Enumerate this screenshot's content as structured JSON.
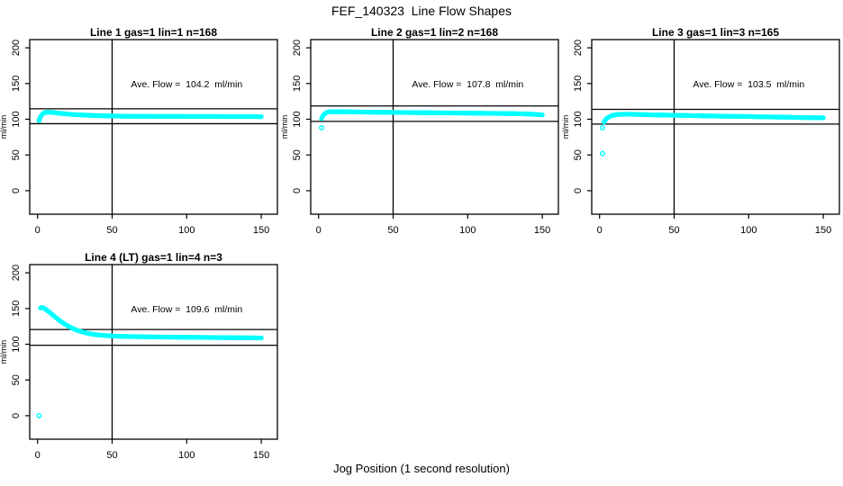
{
  "page": {
    "title": "FEF_140323  Line Flow Shapes",
    "xlabel": "Jog Position (1 second resolution)",
    "background": "#ffffff",
    "point_color": "#00ffff",
    "axis_color": "#000000"
  },
  "chart_data": [
    {
      "type": "scatter",
      "title": "Line 1 gas=1 lin=1 n=168",
      "annotation": "Ave. Flow =  104.2  ml/min",
      "ave_flow_ml_min": 104.2,
      "n_points": 168,
      "ylabel": "ml/min",
      "x_ticks": [
        0,
        50,
        100,
        150
      ],
      "y_ticks": [
        0,
        50,
        100,
        150,
        200
      ],
      "xlim": [
        -5,
        161
      ],
      "ylim": [
        -33,
        212
      ],
      "vline_x": 50,
      "hlines": [
        114.6,
        93.8
      ],
      "legend": "none",
      "grid": false,
      "band": [
        [
          1,
          98.5
        ],
        [
          2,
          103.5
        ],
        [
          3,
          106.5
        ],
        [
          4,
          108.5
        ],
        [
          5,
          109.5
        ],
        [
          7,
          110
        ],
        [
          9,
          109.8
        ],
        [
          12,
          109
        ],
        [
          15,
          108.3
        ],
        [
          18,
          107.8
        ],
        [
          22,
          107
        ],
        [
          26,
          106.4
        ],
        [
          30,
          106
        ],
        [
          35,
          105.5
        ],
        [
          40,
          105.1
        ],
        [
          45,
          104.8
        ],
        [
          50,
          104.6
        ],
        [
          58,
          104.3
        ],
        [
          66,
          104.2
        ],
        [
          75,
          104.1
        ],
        [
          85,
          104
        ],
        [
          95,
          104
        ],
        [
          105,
          103.9
        ],
        [
          115,
          103.9
        ],
        [
          125,
          103.8
        ],
        [
          135,
          103.8
        ],
        [
          150,
          103.7
        ]
      ],
      "outliers": [
        [
          1,
          98.5
        ]
      ]
    },
    {
      "type": "scatter",
      "title": "Line 2 gas=1 lin=2 n=168",
      "annotation": "Ave. Flow =  107.8  ml/min",
      "ave_flow_ml_min": 107.8,
      "n_points": 168,
      "ylabel": "ml/min",
      "x_ticks": [
        0,
        50,
        100,
        150
      ],
      "y_ticks": [
        0,
        50,
        100,
        150,
        200
      ],
      "xlim": [
        -5,
        161
      ],
      "ylim": [
        -33,
        212
      ],
      "vline_x": 50,
      "hlines": [
        118.6,
        97.0
      ],
      "legend": "none",
      "grid": false,
      "band": [
        [
          2,
          101
        ],
        [
          3,
          105
        ],
        [
          4,
          107.5
        ],
        [
          5,
          109
        ],
        [
          6,
          110
        ],
        [
          8,
          110.5
        ],
        [
          10,
          110.6
        ],
        [
          14,
          110.5
        ],
        [
          18,
          110.4
        ],
        [
          25,
          110.2
        ],
        [
          32,
          110
        ],
        [
          40,
          109.8
        ],
        [
          50,
          109.6
        ],
        [
          60,
          109.4
        ],
        [
          70,
          109.2
        ],
        [
          80,
          109
        ],
        [
          90,
          108.8
        ],
        [
          100,
          108.6
        ],
        [
          110,
          108.4
        ],
        [
          120,
          108.2
        ],
        [
          130,
          107.9
        ],
        [
          140,
          107.4
        ],
        [
          146,
          106.8
        ],
        [
          150,
          106.2
        ]
      ],
      "outliers": [
        [
          2,
          88
        ]
      ]
    },
    {
      "type": "scatter",
      "title": "Line 3 gas=1 lin=3 n=165",
      "annotation": "Ave. Flow =  103.5  ml/min",
      "ave_flow_ml_min": 103.5,
      "n_points": 165,
      "ylabel": "ml/min",
      "x_ticks": [
        0,
        50,
        100,
        150
      ],
      "y_ticks": [
        0,
        50,
        100,
        150,
        200
      ],
      "xlim": [
        -5,
        161
      ],
      "ylim": [
        -33,
        212
      ],
      "vline_x": 50,
      "hlines": [
        113.9,
        93.2
      ],
      "legend": "none",
      "grid": false,
      "band": [
        [
          3,
          96
        ],
        [
          4,
          99.5
        ],
        [
          5,
          101.5
        ],
        [
          6,
          103
        ],
        [
          8,
          105
        ],
        [
          10,
          106
        ],
        [
          13,
          106.8
        ],
        [
          16,
          107
        ],
        [
          20,
          107
        ],
        [
          25,
          106.8
        ],
        [
          30,
          106.5
        ],
        [
          35,
          106.2
        ],
        [
          40,
          106
        ],
        [
          50,
          105.6
        ],
        [
          60,
          105.2
        ],
        [
          70,
          104.8
        ],
        [
          80,
          104.4
        ],
        [
          90,
          104.1
        ],
        [
          100,
          103.8
        ],
        [
          110,
          103.4
        ],
        [
          120,
          103
        ],
        [
          130,
          102.6
        ],
        [
          140,
          102.3
        ],
        [
          150,
          102
        ]
      ],
      "outliers": [
        [
          2,
          88
        ],
        [
          2,
          52
        ]
      ]
    },
    {
      "type": "scatter",
      "title": "Line 4 (LT) gas=1 lin=4 n=3",
      "annotation": "Ave. Flow =  109.6  ml/min",
      "ave_flow_ml_min": 109.6,
      "n_points": 3,
      "ylabel": "ml/min",
      "x_ticks": [
        0,
        50,
        100,
        150
      ],
      "y_ticks": [
        0,
        50,
        100,
        150,
        200
      ],
      "xlim": [
        -5,
        161
      ],
      "ylim": [
        -33,
        212
      ],
      "vline_x": 50,
      "hlines": [
        120.6,
        98.6
      ],
      "legend": "none",
      "grid": false,
      "band": [
        [
          2,
          151
        ],
        [
          3,
          151.5
        ],
        [
          4,
          150.8
        ],
        [
          5,
          149.5
        ],
        [
          6,
          148
        ],
        [
          7,
          146.5
        ],
        [
          8,
          144.8
        ],
        [
          9,
          143
        ],
        [
          10,
          141.2
        ],
        [
          12,
          137.8
        ],
        [
          14,
          134.5
        ],
        [
          16,
          131.4
        ],
        [
          18,
          128.6
        ],
        [
          20,
          126
        ],
        [
          22,
          123.8
        ],
        [
          24,
          121.8
        ],
        [
          26,
          120
        ],
        [
          28,
          118.5
        ],
        [
          30,
          117.2
        ],
        [
          33,
          115.6
        ],
        [
          36,
          114.4
        ],
        [
          40,
          113.2
        ],
        [
          44,
          112.4
        ],
        [
          48,
          111.8
        ],
        [
          52,
          111.4
        ],
        [
          58,
          111
        ],
        [
          64,
          110.7
        ],
        [
          72,
          110.4
        ],
        [
          80,
          110.2
        ],
        [
          90,
          110
        ],
        [
          100,
          109.8
        ],
        [
          110,
          109.6
        ],
        [
          120,
          109.4
        ],
        [
          130,
          109.2
        ],
        [
          140,
          109
        ],
        [
          150,
          108.8
        ]
      ],
      "outliers": [
        [
          1,
          0
        ]
      ]
    }
  ]
}
